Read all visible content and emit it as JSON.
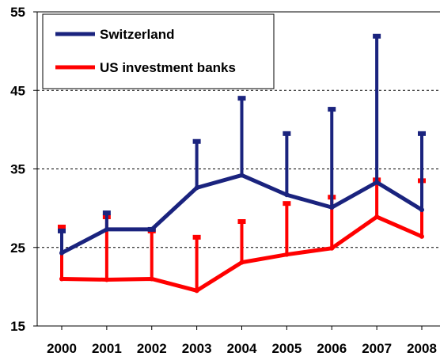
{
  "chart_data": {
    "type": "line",
    "title": "",
    "xlabel": "",
    "ylabel": "",
    "categories": [
      "2000",
      "2001",
      "2002",
      "2003",
      "2004",
      "2005",
      "2006",
      "2007",
      "2008"
    ],
    "ylim": [
      15,
      55
    ],
    "yticks": [
      "15",
      "25",
      "35",
      "45",
      "55"
    ],
    "grid": "horizontal dashed at 25, 35, 45",
    "legend_position": "top-left",
    "series": [
      {
        "name": "Switzerland",
        "color": "#1a237e",
        "values": [
          24.3,
          27.3,
          27.3,
          32.6,
          34.2,
          31.7,
          30.1,
          33.3,
          29.8
        ],
        "upper": [
          27.1,
          29.4,
          27.3,
          38.5,
          44.0,
          39.5,
          42.6,
          51.9,
          39.5
        ]
      },
      {
        "name": "US investment banks",
        "color": "#ff0000",
        "values": [
          21.0,
          20.9,
          21.0,
          19.5,
          23.1,
          24.1,
          24.9,
          28.9,
          26.4
        ],
        "upper": [
          27.6,
          28.9,
          27.1,
          26.3,
          28.3,
          30.6,
          31.4,
          33.6,
          33.5
        ]
      }
    ]
  }
}
